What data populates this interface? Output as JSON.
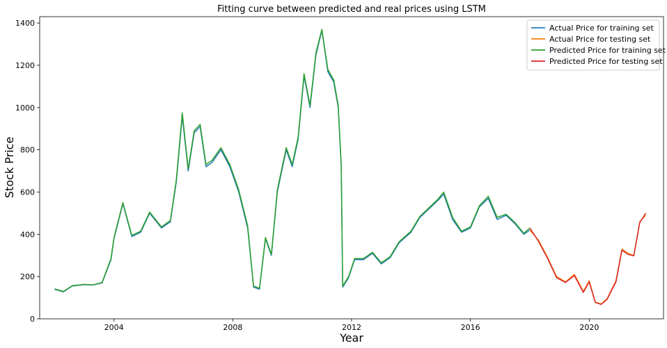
{
  "chart_data": {
    "type": "line",
    "title": "Fitting curve between predicted and real prices using LSTM",
    "xlabel": "Year",
    "ylabel": "Stock Price",
    "xlim": [
      2001.5,
      2022.5
    ],
    "ylim": [
      0,
      1430
    ],
    "xticks": [
      2004,
      2008,
      2012,
      2016,
      2020
    ],
    "yticks": [
      0,
      200,
      400,
      600,
      800,
      1000,
      1200,
      1400
    ],
    "grid": false,
    "legend_position": "top-right",
    "series": [
      {
        "name": "Actual Price for training set",
        "color": "#1f77b4",
        "x": [
          2002.0,
          2002.3,
          2002.6,
          2003.0,
          2003.3,
          2003.6,
          2003.9,
          2004.0,
          2004.3,
          2004.6,
          2004.9,
          2005.2,
          2005.6,
          2005.9,
          2006.1,
          2006.3,
          2006.5,
          2006.7,
          2006.9,
          2007.1,
          2007.3,
          2007.6,
          2007.9,
          2008.2,
          2008.5,
          2008.7,
          2008.9,
          2009.1,
          2009.3,
          2009.5,
          2009.8,
          2010.0,
          2010.2,
          2010.4,
          2010.6,
          2010.8,
          2011.0,
          2011.2,
          2011.4,
          2011.55,
          2011.65,
          2011.7,
          2011.9,
          2012.1,
          2012.4,
          2012.7,
          2013.0,
          2013.3,
          2013.6,
          2014.0,
          2014.3,
          2014.6,
          2014.9,
          2015.1,
          2015.4,
          2015.7,
          2016.0,
          2016.3,
          2016.6,
          2016.9,
          2017.2,
          2017.5,
          2017.8,
          2018.0
        ],
        "values": [
          140,
          128,
          155,
          162,
          160,
          170,
          280,
          380,
          545,
          390,
          410,
          500,
          430,
          460,
          650,
          960,
          700,
          880,
          910,
          720,
          740,
          800,
          720,
          600,
          430,
          150,
          140,
          380,
          300,
          600,
          800,
          720,
          850,
          1150,
          1000,
          1250,
          1365,
          1170,
          1120,
          1000,
          720,
          150,
          195,
          280,
          280,
          310,
          260,
          290,
          360,
          410,
          480,
          520,
          560,
          590,
          470,
          410,
          430,
          530,
          570,
          470,
          490,
          450,
          400,
          420
        ]
      },
      {
        "name": "Actual Price for testing set",
        "color": "#ff7f0e",
        "x": [
          2018.0,
          2018.3,
          2018.6,
          2018.9,
          2019.2,
          2019.5,
          2019.8,
          2020.0,
          2020.2,
          2020.4,
          2020.6,
          2020.9,
          2021.1,
          2021.3,
          2021.5,
          2021.7,
          2021.9
        ],
        "values": [
          420,
          370,
          290,
          200,
          175,
          210,
          130,
          180,
          80,
          70,
          95,
          180,
          330,
          310,
          300,
          460,
          490
        ]
      },
      {
        "name": "Predicted Price for training set",
        "color": "#2ca02c",
        "x": [
          2002.0,
          2002.3,
          2002.6,
          2003.0,
          2003.3,
          2003.6,
          2003.9,
          2004.0,
          2004.3,
          2004.6,
          2004.9,
          2005.2,
          2005.6,
          2005.9,
          2006.1,
          2006.3,
          2006.5,
          2006.7,
          2006.9,
          2007.1,
          2007.3,
          2007.6,
          2007.9,
          2008.2,
          2008.5,
          2008.7,
          2008.9,
          2009.1,
          2009.3,
          2009.5,
          2009.8,
          2010.0,
          2010.2,
          2010.4,
          2010.6,
          2010.8,
          2011.0,
          2011.2,
          2011.4,
          2011.55,
          2011.65,
          2011.7,
          2011.9,
          2012.1,
          2012.4,
          2012.7,
          2013.0,
          2013.3,
          2013.6,
          2014.0,
          2014.3,
          2014.6,
          2014.9,
          2015.1,
          2015.4,
          2015.7,
          2016.0,
          2016.3,
          2016.6,
          2016.9,
          2017.2,
          2017.5,
          2017.8,
          2018.0
        ],
        "values": [
          142,
          130,
          157,
          163,
          161,
          172,
          285,
          385,
          550,
          395,
          415,
          505,
          435,
          465,
          660,
          975,
          710,
          890,
          920,
          730,
          750,
          810,
          730,
          610,
          440,
          155,
          145,
          385,
          305,
          610,
          810,
          730,
          860,
          1160,
          1010,
          1260,
          1370,
          1180,
          1130,
          1010,
          730,
          155,
          200,
          285,
          285,
          315,
          265,
          295,
          365,
          415,
          485,
          525,
          565,
          600,
          480,
          415,
          435,
          535,
          580,
          480,
          495,
          455,
          405,
          430
        ]
      },
      {
        "name": "Predicted Price for testing set",
        "color": "#d62728",
        "x": [
          2018.0,
          2018.3,
          2018.6,
          2018.9,
          2019.2,
          2019.5,
          2019.8,
          2020.0,
          2020.2,
          2020.4,
          2020.6,
          2020.9,
          2021.1,
          2021.3,
          2021.5,
          2021.7,
          2021.9
        ],
        "values": [
          430,
          365,
          285,
          195,
          172,
          205,
          125,
          175,
          78,
          68,
          92,
          175,
          325,
          305,
          298,
          455,
          500
        ]
      }
    ]
  }
}
